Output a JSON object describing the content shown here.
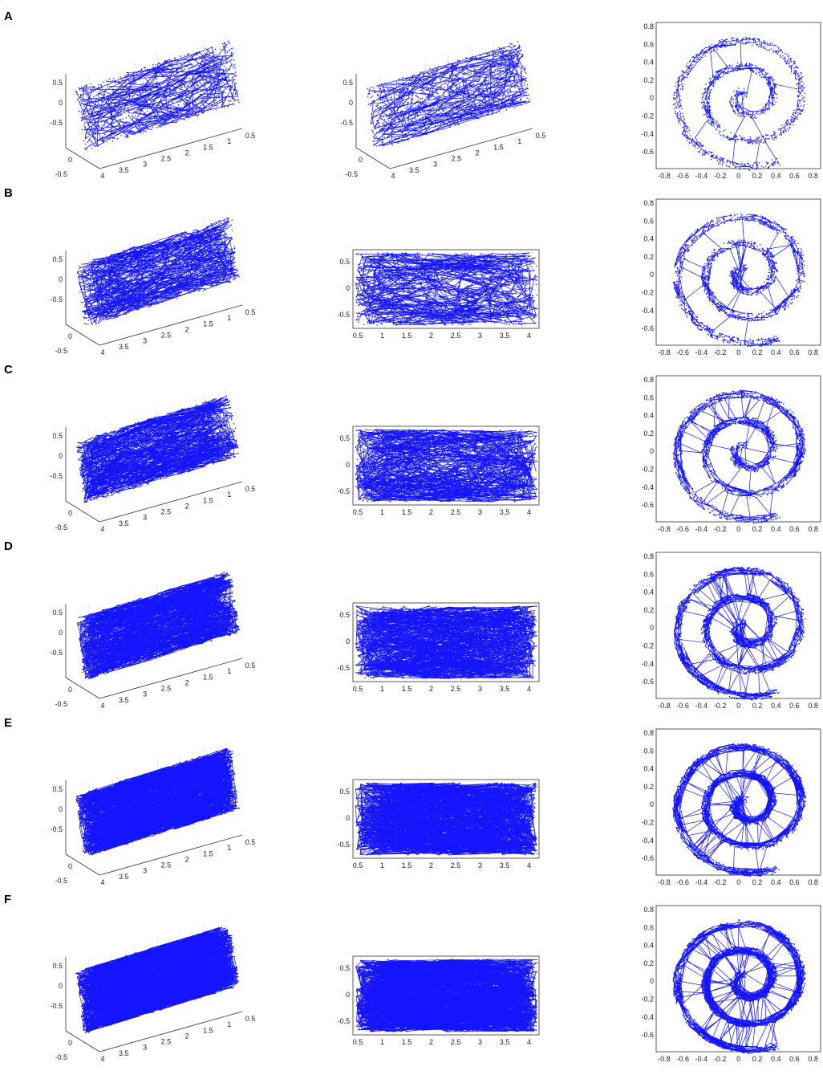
{
  "colors": {
    "data": "#1414ff",
    "axis": "#333333",
    "grid": "#e2e2e2"
  },
  "rows": [
    {
      "letter": "A",
      "right_plot": "3d",
      "density": 0
    },
    {
      "letter": "B",
      "right_plot": "2d",
      "density": 1
    },
    {
      "letter": "C",
      "right_plot": "2d",
      "density": 2
    },
    {
      "letter": "D",
      "right_plot": "2d",
      "density": 3
    },
    {
      "letter": "E",
      "right_plot": "2d",
      "density": 4
    },
    {
      "letter": "F",
      "right_plot": "2d",
      "density": 5
    }
  ],
  "ticks": {
    "iso_z": [
      "0.5",
      "0",
      "-0.5"
    ],
    "iso_front": [
      "0.5",
      "0"
    ],
    "iso_back": [
      "4",
      "3.5",
      "3",
      "2.5",
      "2",
      "1.5",
      "1",
      "0.5"
    ],
    "iso_side": [
      "0",
      "-0.5"
    ],
    "plane_x": [
      "0.5",
      "1",
      "1.5",
      "2",
      "2.5",
      "3",
      "3.5",
      "4"
    ],
    "plane_y": [
      "0.5",
      "0",
      "-0.5"
    ],
    "spiral_x": [
      "-0.8",
      "-0.6",
      "-0.4",
      "-0.2",
      "0",
      "0.2",
      "0.4",
      "0.6",
      "0.8"
    ],
    "spiral_y": [
      "0.8",
      "0.6",
      "0.4",
      "0.2",
      "0",
      "-0.2",
      "-0.4",
      "-0.6"
    ]
  },
  "chart_data": [
    {
      "type": "scatter",
      "panel": "A",
      "view": "3d",
      "points_on": "swiss-roll",
      "edges": "sparse"
    },
    {
      "type": "scatter",
      "panel": "B",
      "view": "side",
      "edges": "sparse"
    },
    {
      "type": "scatter",
      "panel": "C",
      "view": "side",
      "edges": "medium"
    },
    {
      "type": "scatter",
      "panel": "D",
      "view": "side",
      "edges": "dense"
    },
    {
      "type": "scatter",
      "panel": "E",
      "view": "side",
      "edges": "denser"
    },
    {
      "type": "scatter",
      "panel": "F",
      "view": "side",
      "edges": "densest"
    },
    {
      "type": "scatter",
      "panel": "A-F",
      "view": "spiral-top",
      "xlim": [
        -0.9,
        0.85
      ],
      "ylim": [
        -0.75,
        0.9
      ]
    }
  ]
}
